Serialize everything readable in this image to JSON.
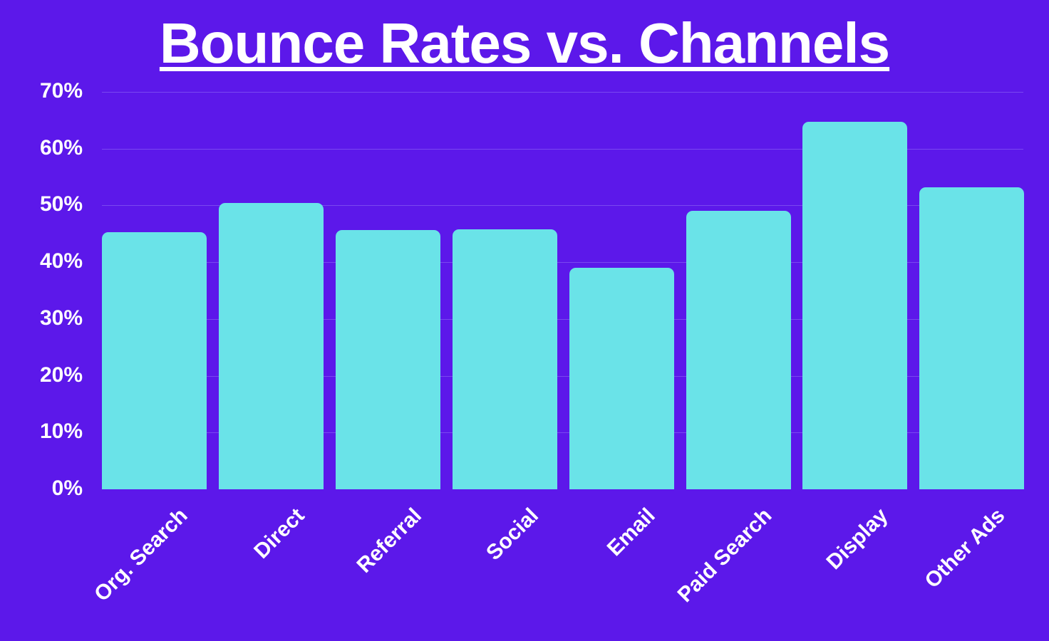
{
  "title": "Bounce Rates vs. Channels",
  "colors": {
    "background": "#5c18ea",
    "bar": "#6ae3e8",
    "grid": "#7a48f0",
    "text": "#ffffff"
  },
  "chart_data": {
    "type": "bar",
    "title": "Bounce Rates vs. Channels",
    "xlabel": "",
    "ylabel": "",
    "categories": [
      "Org. Search",
      "Direct",
      "Referral",
      "Social",
      "Email",
      "Paid Search",
      "Display",
      "Other Ads"
    ],
    "values": [
      45.3,
      50.4,
      45.7,
      45.8,
      39.0,
      49.1,
      64.7,
      53.2
    ],
    "value_unit": "%",
    "ylim": [
      0,
      70
    ],
    "yticks": [
      "0%",
      "10%",
      "20%",
      "30%",
      "40%",
      "50%",
      "60%",
      "70%"
    ],
    "grid": true,
    "legend": null,
    "xtick_rotation": -45
  }
}
